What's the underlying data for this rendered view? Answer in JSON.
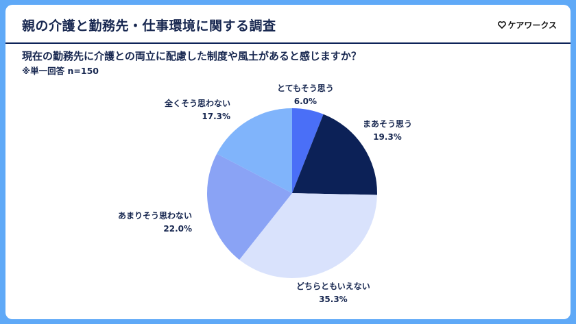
{
  "header": {
    "title": "親の介護と勤務先・仕事環境に関する調査",
    "brand": "ケアワークス",
    "brand_icon": "heart-outline-icon"
  },
  "question": "現在の勤務先に介護との両立に配慮した制度や風土があると感じますか？",
  "note": "※単一回答 n=150",
  "colors": {
    "background": "#5fa9f7",
    "text": "#16264f",
    "divider": "#0d2258"
  },
  "chart_data": {
    "type": "pie",
    "title": "現在の勤務先に介護との両立に配慮した制度や風土があると感じますか？",
    "subtitle": "※単一回答 n=150",
    "start_angle": "12 o'clock, clockwise",
    "categories": [
      "とてもそう思う",
      "まあそう思う",
      "どちらともいえない",
      "あまりそう思わない",
      "全くそう思わない"
    ],
    "values": [
      6.0,
      19.3,
      35.3,
      22.0,
      17.3
    ],
    "unit": "%",
    "colors": [
      "#4a6ff7",
      "#0c2157",
      "#d9e2fc",
      "#8aa3f5",
      "#80b4fb"
    ],
    "labels": [
      {
        "name": "とてもそう思う",
        "pct": "6.0%"
      },
      {
        "name": "まあそう思う",
        "pct": "19.3%"
      },
      {
        "name": "どちらともいえない",
        "pct": "35.3%"
      },
      {
        "name": "あまりそう思わない",
        "pct": "22.0%"
      },
      {
        "name": "全くそう思わない",
        "pct": "17.3%"
      }
    ],
    "legend": "none (direct labels)"
  }
}
